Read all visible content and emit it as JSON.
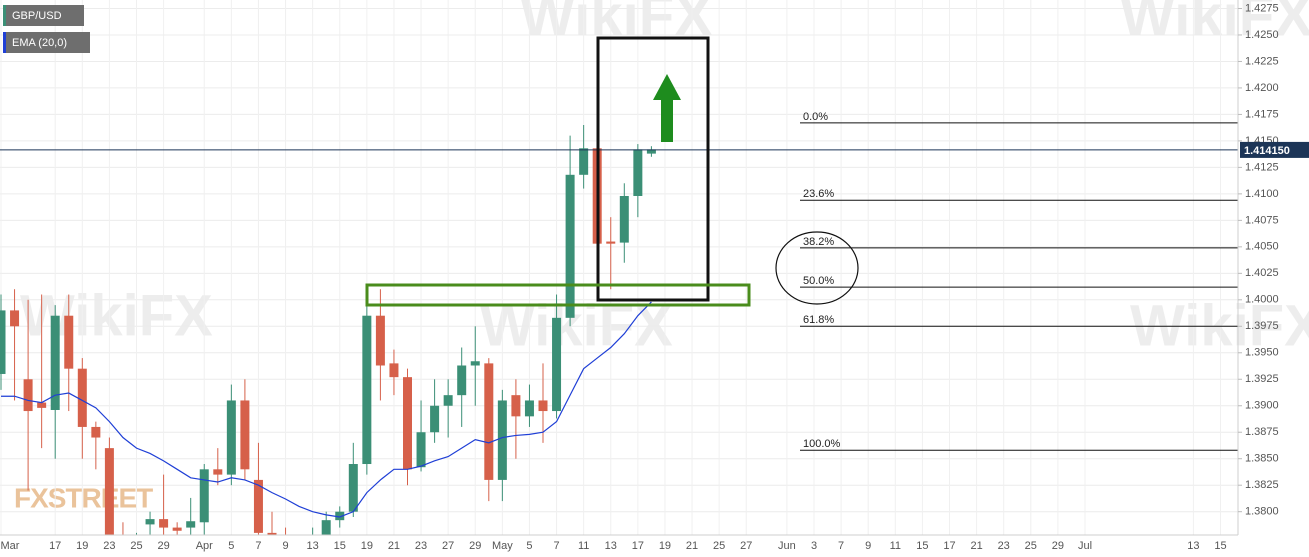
{
  "chart_data": {
    "type": "candlestick",
    "categories": [
      "Mar",
      null,
      null,
      null,
      "17",
      null,
      "19",
      null,
      "23",
      null,
      "25",
      null,
      "29",
      null,
      null,
      "Apr",
      null,
      "5",
      null,
      "7",
      null,
      "9",
      null,
      "13",
      null,
      "15",
      null,
      "19",
      null,
      "21",
      null,
      "23",
      null,
      "27",
      null,
      "29",
      null,
      "May",
      null,
      "5",
      null,
      "7",
      null,
      "11",
      null,
      "13",
      null,
      "17",
      null,
      "19",
      null,
      "21",
      null,
      "25",
      null,
      "27",
      null,
      null,
      "Jun",
      null,
      "3",
      null,
      "7",
      null,
      "9",
      null,
      "11",
      null,
      "15",
      null,
      "17",
      null,
      "21",
      null,
      "23",
      null,
      "25",
      null,
      "29",
      null,
      "Jul",
      null,
      null,
      null,
      null,
      null,
      null,
      null,
      "13",
      null,
      "15"
    ],
    "series": [
      {
        "name": "GBP/USD",
        "up_color": "#3b8f76",
        "down_color": "#d6604a",
        "legend_color": "#3b8f76",
        "open": [
          1.393,
          1.399,
          1.3925,
          1.3903,
          1.3896,
          1.3985,
          1.3935,
          1.388,
          1.386,
          1.3775,
          1.3765,
          1.3788,
          1.3793,
          1.3785,
          1.3785,
          1.379,
          1.384,
          1.3835,
          1.3905,
          1.383,
          1.378,
          1.377,
          1.3765,
          1.377,
          1.3775,
          1.3792,
          1.38,
          1.3845,
          1.3985,
          1.394,
          1.3927,
          1.3842,
          1.3875,
          1.39,
          1.391,
          1.3938,
          1.394,
          1.383,
          1.391,
          1.389,
          1.3905,
          1.3895,
          1.3983,
          1.4118,
          1.4143,
          1.4055,
          1.4054,
          1.4098,
          1.4138,
          null,
          null,
          null,
          null,
          null,
          null,
          null,
          null,
          null,
          null,
          null,
          null,
          null,
          null,
          null,
          null,
          null,
          null,
          null,
          null,
          null,
          null,
          null,
          null,
          null,
          null,
          null,
          null,
          null,
          null,
          null,
          null,
          null,
          null,
          null,
          null,
          null,
          null,
          null,
          null,
          null,
          null
        ],
        "high": [
          1.4005,
          1.401,
          1.4,
          1.4005,
          1.3995,
          1.4005,
          1.3945,
          1.3885,
          1.387,
          1.379,
          1.378,
          1.38,
          1.3835,
          1.379,
          1.3813,
          1.3845,
          1.386,
          1.392,
          1.3925,
          1.3865,
          1.38,
          1.3785,
          1.3775,
          1.3785,
          1.38,
          1.3805,
          1.3865,
          1.3997,
          1.401,
          1.3953,
          1.3935,
          1.3905,
          1.3925,
          1.3925,
          1.3955,
          1.3975,
          1.3945,
          1.3915,
          1.3925,
          1.392,
          1.394,
          1.4005,
          1.4155,
          1.4165,
          1.4145,
          1.4078,
          1.411,
          1.4147,
          1.4145,
          null,
          null,
          null,
          null,
          null,
          null,
          null,
          null,
          null,
          null,
          null,
          null,
          null,
          null,
          null,
          null,
          null,
          null,
          null,
          null,
          null,
          null,
          null,
          null,
          null,
          null,
          null,
          null,
          null,
          null,
          null,
          null,
          null,
          null,
          null,
          null,
          null,
          null,
          null,
          null,
          null,
          null
        ],
        "low": [
          1.3915,
          1.3905,
          1.382,
          1.386,
          1.385,
          1.3895,
          1.385,
          1.384,
          1.376,
          1.375,
          1.3755,
          1.377,
          1.377,
          1.377,
          1.3775,
          1.3775,
          1.3825,
          1.3825,
          1.383,
          1.377,
          1.376,
          1.3755,
          1.3755,
          1.376,
          1.377,
          1.3785,
          1.3795,
          1.3835,
          1.3905,
          1.391,
          1.3825,
          1.3838,
          1.3865,
          1.387,
          1.388,
          1.39,
          1.381,
          1.381,
          1.385,
          1.388,
          1.3865,
          1.3888,
          1.3975,
          1.4105,
          1.405,
          1.401,
          1.4035,
          1.4078,
          1.4135,
          null,
          null,
          null,
          null,
          null,
          null,
          null,
          null,
          null,
          null,
          null,
          null,
          null,
          null,
          null,
          null,
          null,
          null,
          null,
          null,
          null,
          null,
          null,
          null,
          null,
          null,
          null,
          null,
          null,
          null,
          null,
          null,
          null,
          null,
          null,
          null,
          null,
          null,
          null,
          null,
          null,
          null
        ],
        "close": [
          1.399,
          1.3975,
          1.3895,
          1.3898,
          1.3985,
          1.3935,
          1.388,
          1.387,
          1.377,
          1.3765,
          1.3772,
          1.3793,
          1.3785,
          1.3782,
          1.3791,
          1.384,
          1.3835,
          1.3905,
          1.384,
          1.378,
          1.377,
          1.3765,
          1.377,
          1.3775,
          1.3792,
          1.38,
          1.3845,
          1.3985,
          1.3938,
          1.3927,
          1.384,
          1.3875,
          1.39,
          1.391,
          1.3938,
          1.3942,
          1.383,
          1.3905,
          1.389,
          1.3905,
          1.3895,
          1.3983,
          1.4118,
          1.4143,
          1.4053,
          1.4053,
          1.4098,
          1.4142,
          1.4142,
          null,
          null,
          null,
          null,
          null,
          null,
          null,
          null,
          null,
          null,
          null,
          null,
          null,
          null,
          null,
          null,
          null,
          null,
          null,
          null,
          null,
          null,
          null,
          null,
          null,
          null,
          null,
          null,
          null,
          null,
          null,
          null,
          null,
          null,
          null,
          null,
          null,
          null,
          null,
          null,
          null,
          null
        ]
      },
      {
        "name": "EMA (20,0)",
        "type": "line",
        "color": "#1f3fd6",
        "values": [
          1.3909,
          1.3909,
          1.3905,
          1.3903,
          1.391,
          1.3912,
          1.3905,
          1.3898,
          1.3885,
          1.387,
          1.386,
          1.3855,
          1.3848,
          1.384,
          1.3832,
          1.383,
          1.3828,
          1.3832,
          1.383,
          1.3825,
          1.3818,
          1.3812,
          1.3805,
          1.38,
          1.3797,
          1.3795,
          1.38,
          1.3818,
          1.383,
          1.384,
          1.384,
          1.3843,
          1.3848,
          1.3852,
          1.386,
          1.3868,
          1.3865,
          1.387,
          1.3872,
          1.3873,
          1.3875,
          1.3885,
          1.391,
          1.3935,
          1.3945,
          1.3955,
          1.3968,
          1.3985,
          1.3998,
          null,
          null,
          null,
          null,
          null,
          null,
          null,
          null,
          null,
          null,
          null,
          null,
          null,
          null,
          null,
          null,
          null,
          null,
          null,
          null,
          null,
          null,
          null,
          null,
          null,
          null,
          null,
          null,
          null,
          null,
          null,
          null,
          null,
          null,
          null,
          null,
          null,
          null,
          null,
          null,
          null,
          null
        ]
      }
    ],
    "ylim": [
      1.3778,
      1.4283
    ],
    "yticks": [
      {
        "value": 1.38,
        "label": "1.3800"
      },
      1.3825,
      {
        "value": 1.385,
        "label": "1.3850"
      },
      1.3875,
      {
        "value": 1.39,
        "label": "1.3900"
      },
      1.3925,
      {
        "value": 1.395,
        "label": "1.3950"
      },
      1.3975,
      {
        "value": 1.4,
        "label": "1.4000"
      },
      1.4025,
      {
        "value": 1.405,
        "label": "1.4050"
      },
      1.4075,
      {
        "value": 1.41,
        "label": "1.4100"
      },
      1.4125,
      {
        "value": 1.415,
        "label": "1.4150"
      },
      1.4175,
      {
        "value": 1.42,
        "label": "1.4200"
      },
      1.4225,
      {
        "value": 1.425,
        "label": "1.4250"
      },
      1.4275
    ],
    "grid": true,
    "price_line": {
      "value": 1.41415,
      "label": "1.414150",
      "color": "#1c3557"
    },
    "fib_levels": [
      {
        "label": "0.0%",
        "price": 1.4167
      },
      {
        "label": "23.6%",
        "price": 1.4094
      },
      {
        "label": "38.2%",
        "price": 1.4049
      },
      {
        "label": "50.0%",
        "price": 1.4012
      },
      {
        "label": "61.8%",
        "price": 1.3975
      },
      {
        "label": "100.0%",
        "price": 1.3858
      }
    ],
    "watermark": "WikiFX",
    "logo": "FXSTREET"
  }
}
